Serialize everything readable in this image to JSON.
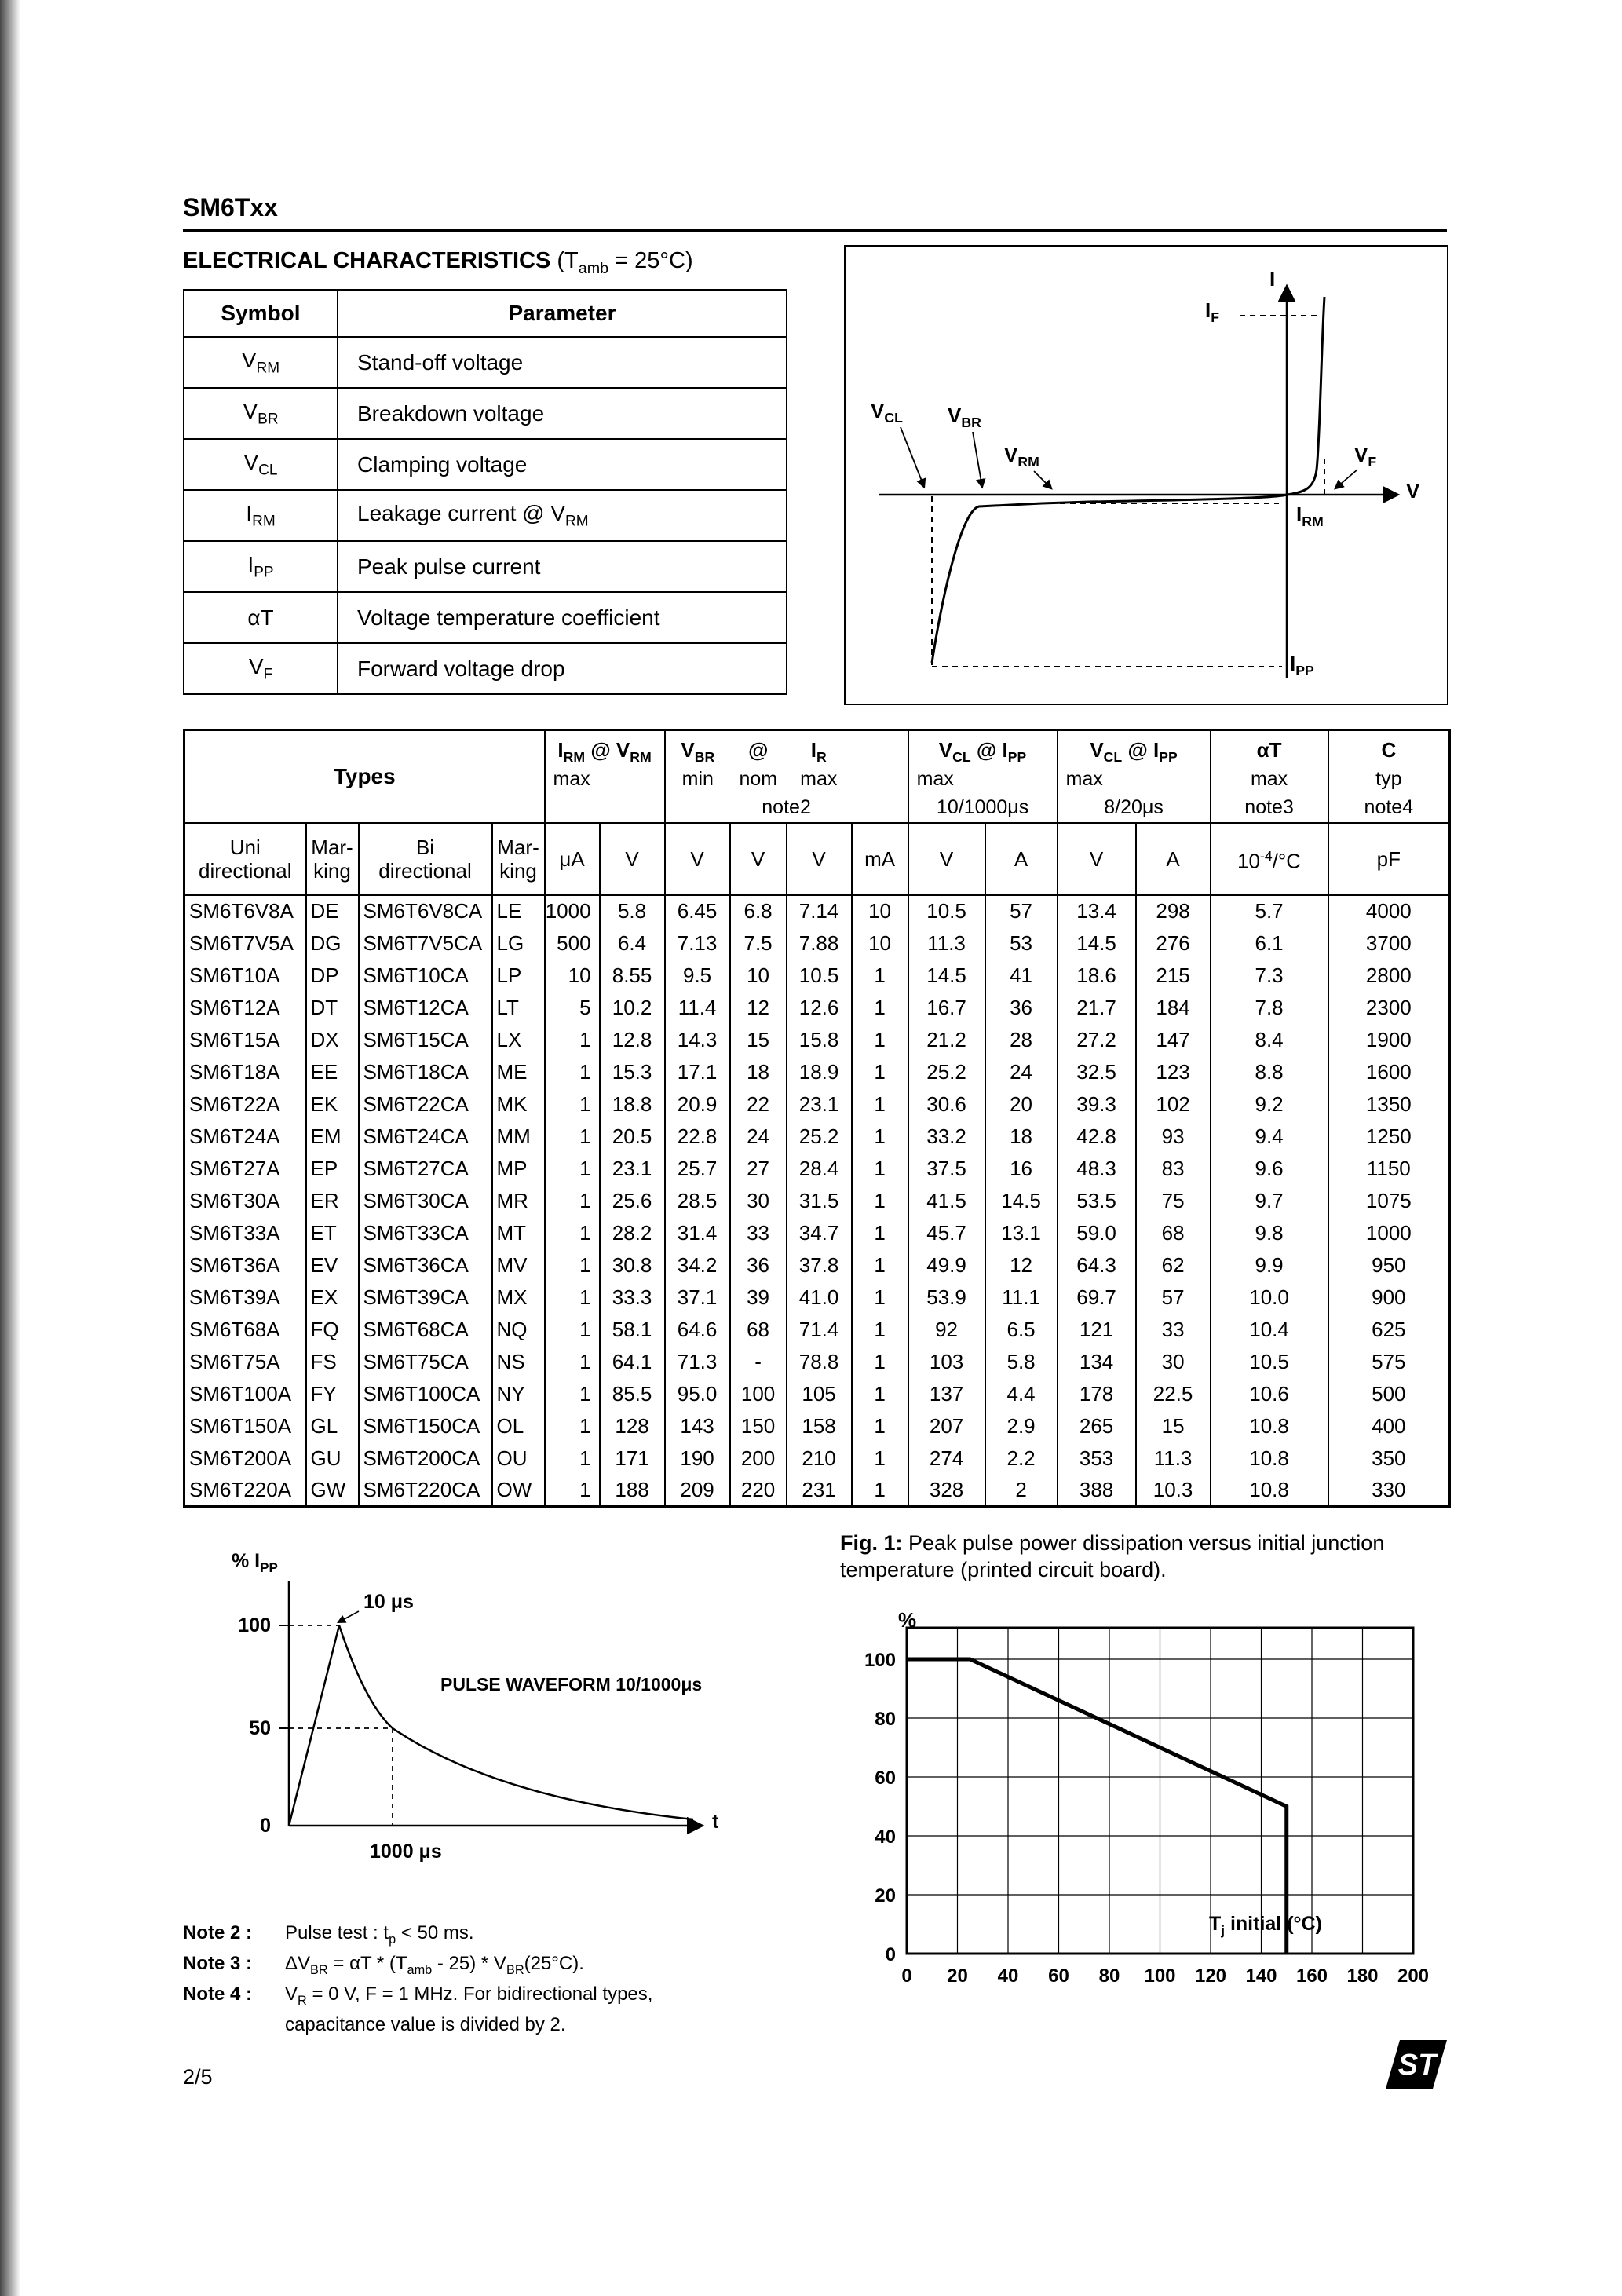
{
  "page": {
    "title": "SM6Txx",
    "section_title": "ELECTRICAL CHARACTERISTICS",
    "section_title_suffix": "(T_{amb} = 25°C)",
    "page_number": "2/5",
    "logo_text": "ST"
  },
  "symbol_table": {
    "col_headers": [
      "Symbol",
      "Parameter"
    ],
    "rows": [
      {
        "symbol": "V_{RM}",
        "parameter": "Stand-off voltage"
      },
      {
        "symbol": "V_{BR}",
        "parameter": "Breakdown voltage"
      },
      {
        "symbol": "V_{CL}",
        "parameter": "Clamping voltage"
      },
      {
        "symbol": "I_{RM}",
        "parameter": "Leakage current @ V_{RM}"
      },
      {
        "symbol": "I_{PP}",
        "parameter": "Peak pulse current"
      },
      {
        "symbol": "αT",
        "parameter": "Voltage temperature coefficient"
      },
      {
        "symbol": "V_{F}",
        "parameter": "Forward voltage drop"
      }
    ]
  },
  "iv_diagram": {
    "labels": {
      "i_axis": "I",
      "v_axis": "V",
      "i_f": "I_{F}",
      "v_cl": "V_{CL}",
      "v_br": "V_{BR}",
      "v_rm": "V_{RM}",
      "v_f": "V_{F}",
      "i_rm": "I_{RM}",
      "i_pp": "I_{PP}"
    }
  },
  "main_table": {
    "group_headers": {
      "types": "Types",
      "irm_vrm": {
        "title": "I_{RM} @ V_{RM}",
        "sub": "max"
      },
      "vbr": {
        "title_left": "V_{BR}",
        "title_mid": "@",
        "title_right": "I_{R}",
        "cols": [
          "min",
          "nom",
          "max"
        ],
        "note": "note2"
      },
      "vcl_10_1000": {
        "title": "V_{CL} @ I_{PP}",
        "sub": "max",
        "cond": "10/1000μs"
      },
      "vcl_8_20": {
        "title": "V_{CL} @ I_{PP}",
        "sub": "max",
        "cond": "8/20μs"
      },
      "alpha_t": {
        "title": "αT",
        "sub": "max",
        "note": "note3"
      },
      "c": {
        "title": "C",
        "sub": "typ",
        "note": "note4"
      }
    },
    "type_subheaders": [
      [
        "Uni",
        "directional"
      ],
      [
        "Mar-",
        "king"
      ],
      [
        "Bi",
        "directional"
      ],
      [
        "Mar-",
        "king"
      ]
    ],
    "units": [
      "μA",
      "V",
      "V",
      "V",
      "V",
      "mA",
      "V",
      "A",
      "V",
      "A",
      "10^{-4}/°C",
      "pF"
    ],
    "rows": [
      [
        "SM6T6V8A",
        "DE",
        "SM6T6V8CA",
        "LE",
        "1000",
        "5.8",
        "6.45",
        "6.8",
        "7.14",
        "10",
        "10.5",
        "57",
        "13.4",
        "298",
        "5.7",
        "4000"
      ],
      [
        "SM6T7V5A",
        "DG",
        "SM6T7V5CA",
        "LG",
        "500",
        "6.4",
        "7.13",
        "7.5",
        "7.88",
        "10",
        "11.3",
        "53",
        "14.5",
        "276",
        "6.1",
        "3700"
      ],
      [
        "SM6T10A",
        "DP",
        "SM6T10CA",
        "LP",
        "10",
        "8.55",
        "9.5",
        "10",
        "10.5",
        "1",
        "14.5",
        "41",
        "18.6",
        "215",
        "7.3",
        "2800"
      ],
      [
        "SM6T12A",
        "DT",
        "SM6T12CA",
        "LT",
        "5",
        "10.2",
        "11.4",
        "12",
        "12.6",
        "1",
        "16.7",
        "36",
        "21.7",
        "184",
        "7.8",
        "2300"
      ],
      [
        "SM6T15A",
        "DX",
        "SM6T15CA",
        "LX",
        "1",
        "12.8",
        "14.3",
        "15",
        "15.8",
        "1",
        "21.2",
        "28",
        "27.2",
        "147",
        "8.4",
        "1900"
      ],
      [
        "SM6T18A",
        "EE",
        "SM6T18CA",
        "ME",
        "1",
        "15.3",
        "17.1",
        "18",
        "18.9",
        "1",
        "25.2",
        "24",
        "32.5",
        "123",
        "8.8",
        "1600"
      ],
      [
        "SM6T22A",
        "EK",
        "SM6T22CA",
        "MK",
        "1",
        "18.8",
        "20.9",
        "22",
        "23.1",
        "1",
        "30.6",
        "20",
        "39.3",
        "102",
        "9.2",
        "1350"
      ],
      [
        "SM6T24A",
        "EM",
        "SM6T24CA",
        "MM",
        "1",
        "20.5",
        "22.8",
        "24",
        "25.2",
        "1",
        "33.2",
        "18",
        "42.8",
        "93",
        "9.4",
        "1250"
      ],
      [
        "SM6T27A",
        "EP",
        "SM6T27CA",
        "MP",
        "1",
        "23.1",
        "25.7",
        "27",
        "28.4",
        "1",
        "37.5",
        "16",
        "48.3",
        "83",
        "9.6",
        "1150"
      ],
      [
        "SM6T30A",
        "ER",
        "SM6T30CA",
        "MR",
        "1",
        "25.6",
        "28.5",
        "30",
        "31.5",
        "1",
        "41.5",
        "14.5",
        "53.5",
        "75",
        "9.7",
        "1075"
      ],
      [
        "SM6T33A",
        "ET",
        "SM6T33CA",
        "MT",
        "1",
        "28.2",
        "31.4",
        "33",
        "34.7",
        "1",
        "45.7",
        "13.1",
        "59.0",
        "68",
        "9.8",
        "1000"
      ],
      [
        "SM6T36A",
        "EV",
        "SM6T36CA",
        "MV",
        "1",
        "30.8",
        "34.2",
        "36",
        "37.8",
        "1",
        "49.9",
        "12",
        "64.3",
        "62",
        "9.9",
        "950"
      ],
      [
        "SM6T39A",
        "EX",
        "SM6T39CA",
        "MX",
        "1",
        "33.3",
        "37.1",
        "39",
        "41.0",
        "1",
        "53.9",
        "11.1",
        "69.7",
        "57",
        "10.0",
        "900"
      ],
      [
        "SM6T68A",
        "FQ",
        "SM6T68CA",
        "NQ",
        "1",
        "58.1",
        "64.6",
        "68",
        "71.4",
        "1",
        "92",
        "6.5",
        "121",
        "33",
        "10.4",
        "625"
      ],
      [
        "SM6T75A",
        "FS",
        "SM6T75CA",
        "NS",
        "1",
        "64.1",
        "71.3",
        "-",
        "78.8",
        "1",
        "103",
        "5.8",
        "134",
        "30",
        "10.5",
        "575"
      ],
      [
        "SM6T100A",
        "FY",
        "SM6T100CA",
        "NY",
        "1",
        "85.5",
        "95.0",
        "100",
        "105",
        "1",
        "137",
        "4.4",
        "178",
        "22.5",
        "10.6",
        "500"
      ],
      [
        "SM6T150A",
        "GL",
        "SM6T150CA",
        "OL",
        "1",
        "128",
        "143",
        "150",
        "158",
        "1",
        "207",
        "2.9",
        "265",
        "15",
        "10.8",
        "400"
      ],
      [
        "SM6T200A",
        "GU",
        "SM6T200CA",
        "OU",
        "1",
        "171",
        "190",
        "200",
        "210",
        "1",
        "274",
        "2.2",
        "353",
        "11.3",
        "10.8",
        "350"
      ],
      [
        "SM6T220A",
        "GW",
        "SM6T220CA",
        "OW",
        "1",
        "188",
        "209",
        "220",
        "231",
        "1",
        "328",
        "2",
        "388",
        "10.3",
        "10.8",
        "330"
      ]
    ]
  },
  "fig1": {
    "caption_bold": "Fig. 1:",
    "caption_text": "Peak pulse power dissipation versus initial junction temperature (printed circuit board)."
  },
  "notes": [
    {
      "label": "Note 2 :",
      "text": "Pulse test : t_{p} < 50 ms."
    },
    {
      "label": "Note 3 :",
      "text": "ΔV_{BR} = αT * (T_{amb} - 25) * V_{BR}(25°C)."
    },
    {
      "label": "Note 4 :",
      "text": "V_{R} = 0 V,  F = 1 MHz. For bidirectional types,"
    },
    {
      "label": "",
      "text": "capacitance value is divided by 2."
    }
  ],
  "chart_data": [
    {
      "id": "pulse_waveform",
      "type": "line",
      "title": "PULSE WAVEFORM 10/1000μs",
      "ylabel": "% I_{PP}",
      "xlabel": "t",
      "yticks": [
        "100",
        "50",
        "0"
      ],
      "annotations": [
        "10 μs",
        "1000 μs"
      ],
      "description": "Exponential surge pulse: rises to 100% at t = 10 μs, decays to 50% at t = 1000 μs"
    },
    {
      "id": "fig1_derating",
      "type": "line",
      "title": "Fig. 1: Peak pulse power dissipation versus initial junction temperature (printed circuit board).",
      "ylabel": "%",
      "xlabel": "T_{j} initial (°C)",
      "xlim": [
        0,
        200
      ],
      "ylim": [
        0,
        100
      ],
      "xticks": [
        0,
        20,
        40,
        60,
        80,
        100,
        120,
        140,
        160,
        180,
        200
      ],
      "yticks": [
        0,
        20,
        40,
        60,
        80,
        100
      ],
      "grid": true,
      "legend": "none",
      "series": [
        {
          "name": "peak pulse power derating",
          "points": [
            [
              0,
              100
            ],
            [
              25,
              100
            ],
            [
              150,
              50
            ],
            [
              150,
              0
            ]
          ]
        }
      ]
    }
  ]
}
